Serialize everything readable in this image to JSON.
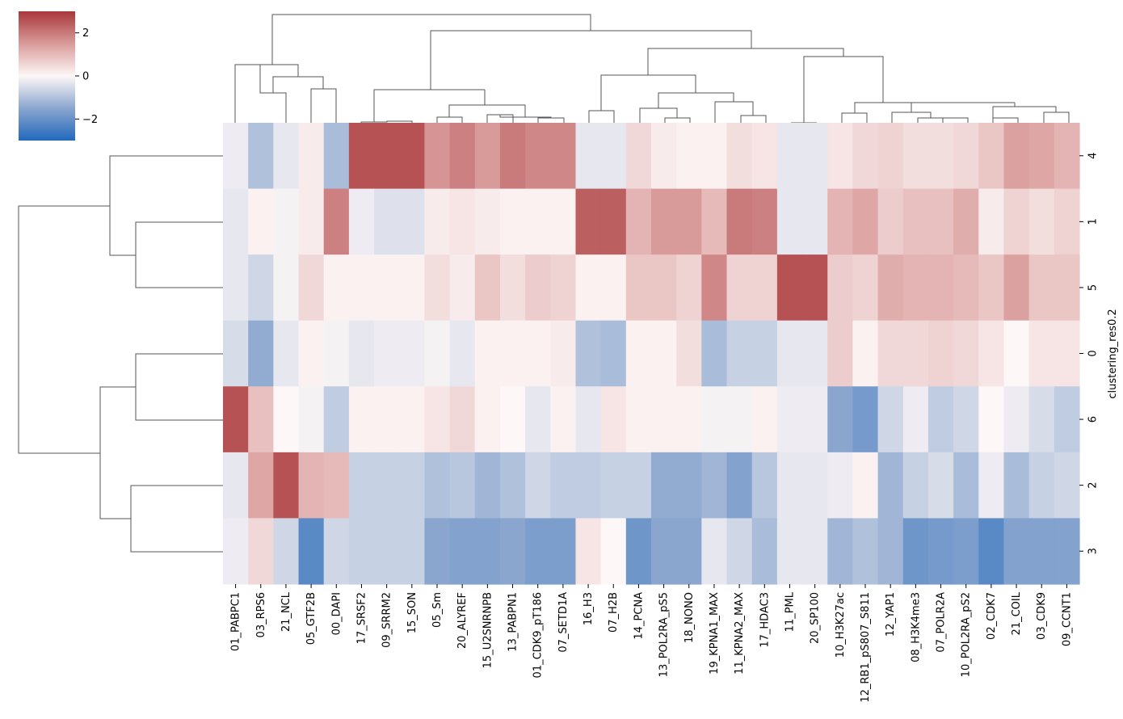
{
  "chart_data": {
    "type": "heatmap",
    "title": "",
    "xlabel": "",
    "ylabel": "clustering_res0.2",
    "columns": [
      "01_PABPC1",
      "03_RPS6",
      "21_NCL",
      "05_GTF2B",
      "00_DAPI",
      "17_SRSF2",
      "09_SRRM2",
      "15_SON",
      "05_Sm",
      "20_ALYREF",
      "15_U2SNRNPB",
      "13_PABPN1",
      "01_CDK9_pT186",
      "07_SETD1A",
      "16_H3",
      "07_H2B",
      "14_PCNA",
      "13_POL2RA_pS5",
      "18_NONO",
      "19_KPNA1_MAX",
      "11_KPNA2_MAX",
      "17_HDAC3",
      "11_PML",
      "20_SP100",
      "10_H3K27ac",
      "12_RB1_pS807_S811",
      "12_YAP1",
      "08_H3K4me3",
      "07_POLR2A",
      "10_POL2RA_pS2",
      "02_CDK7",
      "21_COIL",
      "03_CDK9",
      "09_CCNT1"
    ],
    "rows": [
      "4",
      "1",
      "5",
      "0",
      "6",
      "2",
      "3"
    ],
    "values": [
      [
        -0.2,
        -1.0,
        -0.3,
        0.2,
        -1.1,
        2.6,
        2.6,
        2.6,
        1.6,
        1.9,
        1.5,
        2.0,
        1.8,
        1.8,
        -0.3,
        -0.3,
        0.5,
        0.2,
        0.1,
        0.1,
        0.4,
        0.3,
        -0.3,
        -0.3,
        0.3,
        0.5,
        0.6,
        0.4,
        0.4,
        0.5,
        0.8,
        1.4,
        1.3,
        1.1
      ],
      [
        -0.3,
        0.1,
        -0.1,
        0.2,
        1.9,
        -0.2,
        -0.4,
        -0.4,
        0.2,
        0.3,
        0.2,
        0.1,
        0.1,
        0.1,
        2.4,
        2.4,
        1.1,
        1.5,
        1.5,
        1.0,
        2.0,
        1.9,
        -0.3,
        -0.3,
        1.1,
        1.3,
        0.7,
        0.9,
        0.9,
        1.2,
        0.2,
        0.6,
        0.4,
        0.6
      ],
      [
        -0.3,
        -0.6,
        -0.1,
        0.5,
        0.1,
        0.1,
        0.1,
        0.1,
        0.4,
        0.2,
        0.8,
        0.4,
        0.7,
        0.6,
        0.1,
        0.1,
        0.8,
        0.8,
        0.6,
        1.8,
        0.6,
        0.6,
        2.6,
        2.6,
        0.7,
        0.6,
        1.2,
        1.1,
        1.1,
        1.0,
        0.8,
        1.4,
        0.8,
        0.8
      ],
      [
        -0.5,
        -1.4,
        -0.3,
        0.1,
        -0.1,
        -0.3,
        -0.2,
        -0.2,
        -0.1,
        -0.3,
        0.1,
        0.1,
        0.1,
        0.2,
        -1.0,
        -1.1,
        0.1,
        0.1,
        0.4,
        -1.1,
        -0.7,
        -0.7,
        -0.3,
        -0.3,
        0.7,
        0.1,
        0.5,
        0.5,
        0.6,
        0.5,
        0.3,
        0.0,
        0.3,
        0.3
      ],
      [
        2.6,
        0.9,
        0.0,
        -0.1,
        -0.8,
        0.1,
        0.1,
        0.1,
        0.3,
        0.5,
        0.1,
        0.0,
        -0.3,
        0.1,
        -0.3,
        0.3,
        0.1,
        0.1,
        0.1,
        -0.1,
        -0.1,
        0.1,
        -0.2,
        -0.2,
        -1.5,
        -1.8,
        -0.6,
        -0.2,
        -0.8,
        -0.6,
        0.0,
        -0.2,
        -0.5,
        -0.8
      ],
      [
        -0.3,
        1.3,
        2.6,
        1.1,
        1.0,
        -0.7,
        -0.7,
        -0.7,
        -1.0,
        -0.9,
        -1.2,
        -1.0,
        -0.6,
        -0.8,
        -0.8,
        -0.7,
        -0.7,
        -1.4,
        -1.4,
        -1.2,
        -1.6,
        -0.9,
        -0.3,
        -0.3,
        -0.2,
        0.1,
        -1.2,
        -0.7,
        -0.5,
        -1.1,
        -0.2,
        -1.1,
        -0.7,
        -0.6
      ],
      [
        -0.2,
        0.5,
        -0.6,
        -2.2,
        -0.6,
        -0.7,
        -0.7,
        -0.7,
        -1.5,
        -1.6,
        -1.6,
        -1.5,
        -1.7,
        -1.7,
        0.3,
        0.0,
        -1.9,
        -1.5,
        -1.5,
        -0.3,
        -0.6,
        -1.1,
        -0.3,
        -0.3,
        -1.2,
        -1.0,
        -1.2,
        -1.9,
        -1.8,
        -1.7,
        -2.2,
        -1.6,
        -1.6,
        -1.6
      ]
    ],
    "colorbar": {
      "vmin": -3,
      "vmax": 3,
      "ticks": [
        2,
        0,
        -2
      ],
      "tick_labels": [
        "2",
        "0",
        "−2"
      ],
      "colormap": "vlag"
    }
  }
}
